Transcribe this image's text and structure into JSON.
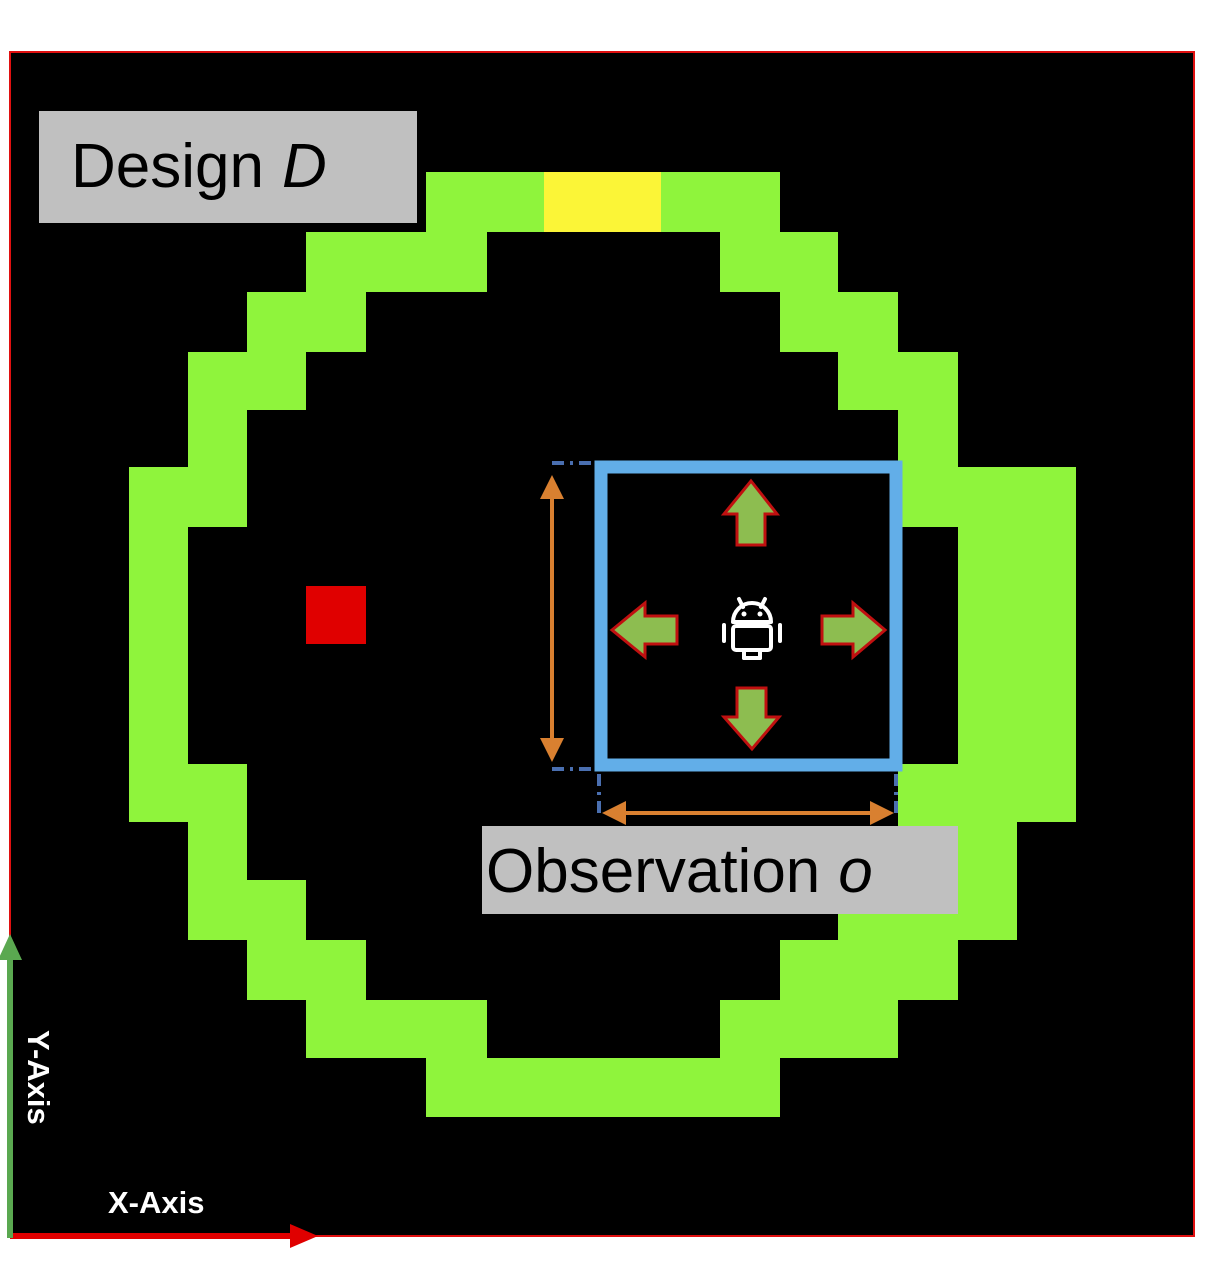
{
  "design_label": {
    "text": "Design",
    "variable": "D"
  },
  "observation_label": {
    "text": "Observation",
    "variable": "o"
  },
  "axes": {
    "x_label": "X-Axis",
    "y_label": "Y-Axis"
  },
  "agent_icon": "robot-icon",
  "move_actions": [
    "up",
    "down",
    "left",
    "right"
  ],
  "colors": {
    "background": "#000000",
    "border": "#e01010",
    "wall": "#8ff43c",
    "goal": "#fbf537",
    "target": "#e00000",
    "observation_window": "#62aee8",
    "dimension_arrow": "#d98030",
    "move_arrow_fill": "#8dbd50",
    "move_arrow_stroke": "#c01010",
    "x_axis": "#e00000",
    "y_axis": "#5aa850",
    "label_box": "#c0c0c0"
  }
}
